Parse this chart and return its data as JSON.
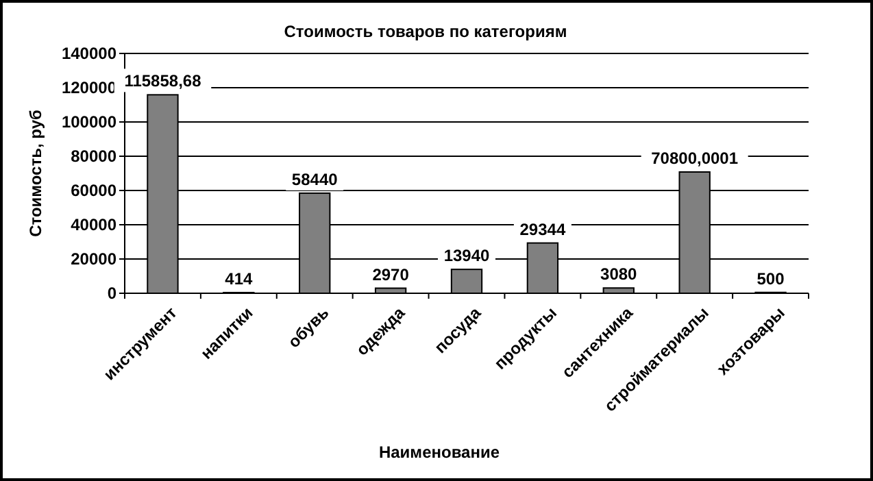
{
  "chart_data": {
    "type": "bar",
    "title": "Стоимость товаров по категориям",
    "xlabel": "Наименование",
    "ylabel": "Стоимость, руб",
    "categories": [
      "инструмент",
      "напитки",
      "обувь",
      "одежда",
      "посуда",
      "продукты",
      "сантехника",
      "стройматериалы",
      "хозтовары"
    ],
    "values": [
      115858.68,
      414,
      58440,
      2970,
      13940,
      29344,
      3080,
      70800.0001,
      500
    ],
    "value_labels": [
      "115858,68",
      "414",
      "58440",
      "2970",
      "13940",
      "29344",
      "3080",
      "70800,0001",
      "500"
    ],
    "color": "#808080",
    "ylim": [
      0,
      140000
    ],
    "yticks": [
      0,
      20000,
      40000,
      60000,
      80000,
      100000,
      120000,
      140000
    ],
    "grid": "y"
  }
}
